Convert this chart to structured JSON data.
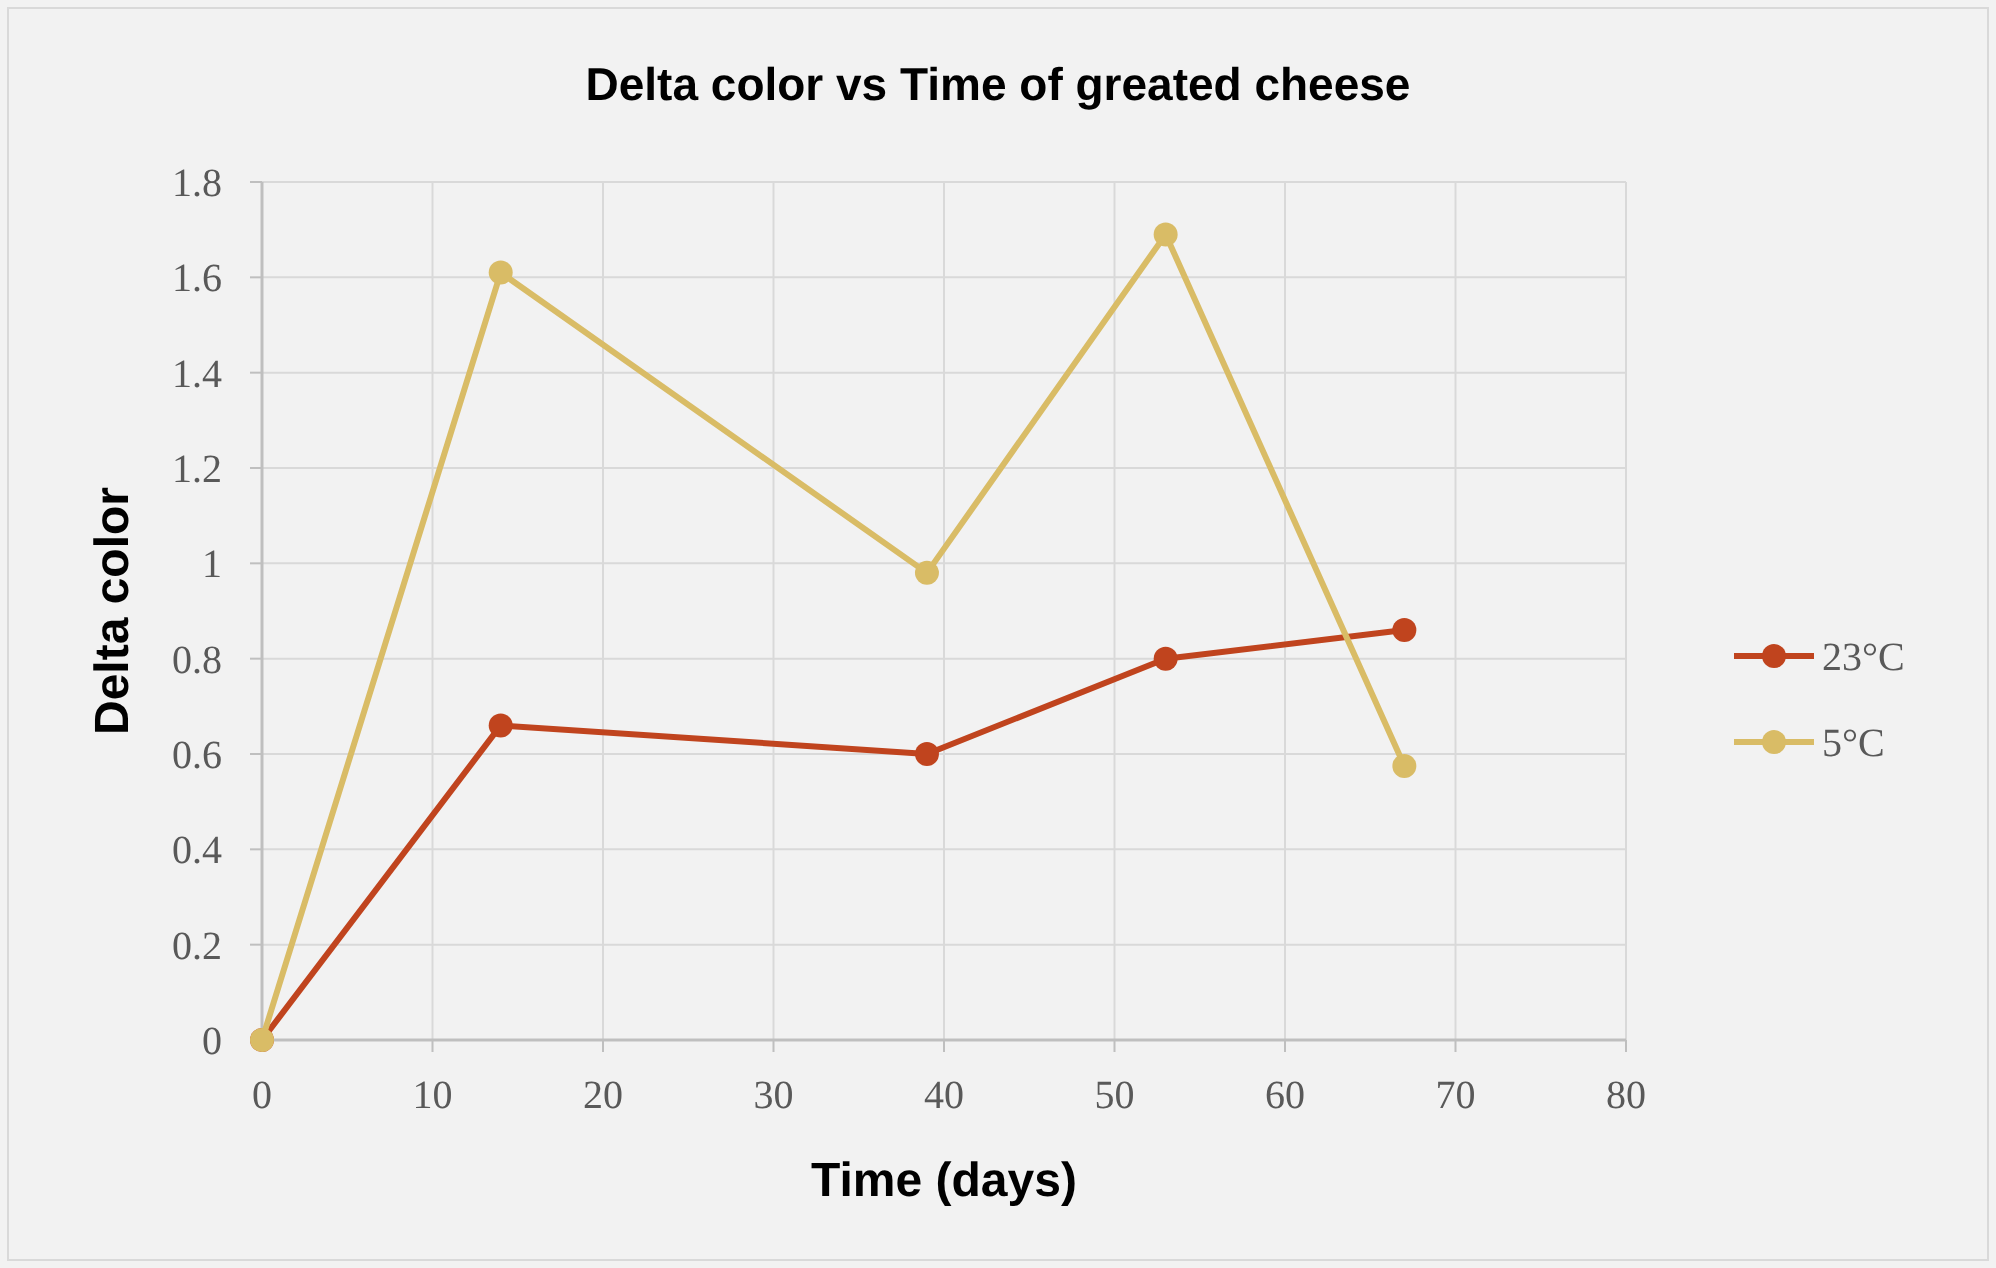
{
  "chart_data": {
    "type": "line",
    "title": "Delta color vs Time of greated cheese",
    "xlabel": "Time (days)",
    "ylabel": "Delta color",
    "x": [
      0,
      14,
      39,
      53,
      67
    ],
    "series": [
      {
        "name": "23°C",
        "color": "#c0441e",
        "values": [
          0,
          0.66,
          0.6,
          0.8,
          0.86
        ]
      },
      {
        "name": "5°C",
        "color": "#d9bc66",
        "values": [
          0,
          1.61,
          0.98,
          1.69,
          0.575
        ]
      }
    ],
    "xlim": [
      0,
      80
    ],
    "xticks": [
      0,
      10,
      20,
      30,
      40,
      50,
      60,
      70,
      80
    ],
    "ylim": [
      0,
      1.8
    ],
    "yticks": [
      0,
      0.2,
      0.4,
      0.6,
      0.8,
      1,
      1.2,
      1.4,
      1.6,
      1.8
    ],
    "grid": true,
    "legend": "right",
    "marker": "circle",
    "line_style": "solid"
  }
}
